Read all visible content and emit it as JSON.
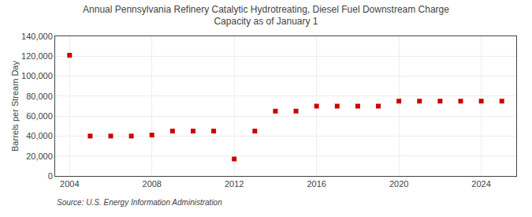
{
  "chart_data": {
    "type": "scatter",
    "title": "Annual Pennsylvania Refinery Catalytic Hydrotreating, Diesel Fuel Downstream Charge\nCapacity as of January 1",
    "ylabel": "Barrels per Stream Day",
    "annotations": [
      "Source: U.S. Energy Information Administration"
    ],
    "x": [
      2004,
      2005,
      2006,
      2007,
      2008,
      2009,
      2010,
      2011,
      2012,
      2013,
      2014,
      2015,
      2016,
      2017,
      2018,
      2019,
      2020,
      2021,
      2022,
      2023,
      2024,
      2025
    ],
    "values": [
      121000,
      40000,
      40000,
      40000,
      41000,
      45000,
      45000,
      45000,
      17000,
      45000,
      65000,
      65000,
      70000,
      70000,
      70000,
      70000,
      75000,
      75000,
      75000,
      75000,
      75000,
      75000
    ],
    "color": "#cc0000",
    "marker": "square",
    "xlim": [
      2003.3,
      2025.7
    ],
    "xticks": [
      2004,
      2008,
      2012,
      2016,
      2020,
      2024
    ],
    "ylim": [
      0,
      140000
    ],
    "yticks": [
      0,
      {
        "value": 20000,
        "label": "20,000"
      },
      {
        "value": 40000,
        "label": "40,000"
      },
      {
        "value": 60000,
        "label": "60,000"
      },
      {
        "value": 80000,
        "label": "80,000"
      },
      {
        "value": 100000,
        "label": "100,000"
      },
      {
        "value": 120000,
        "label": "120,000"
      },
      {
        "value": 140000,
        "label": "140,000"
      }
    ],
    "grid": true
  }
}
